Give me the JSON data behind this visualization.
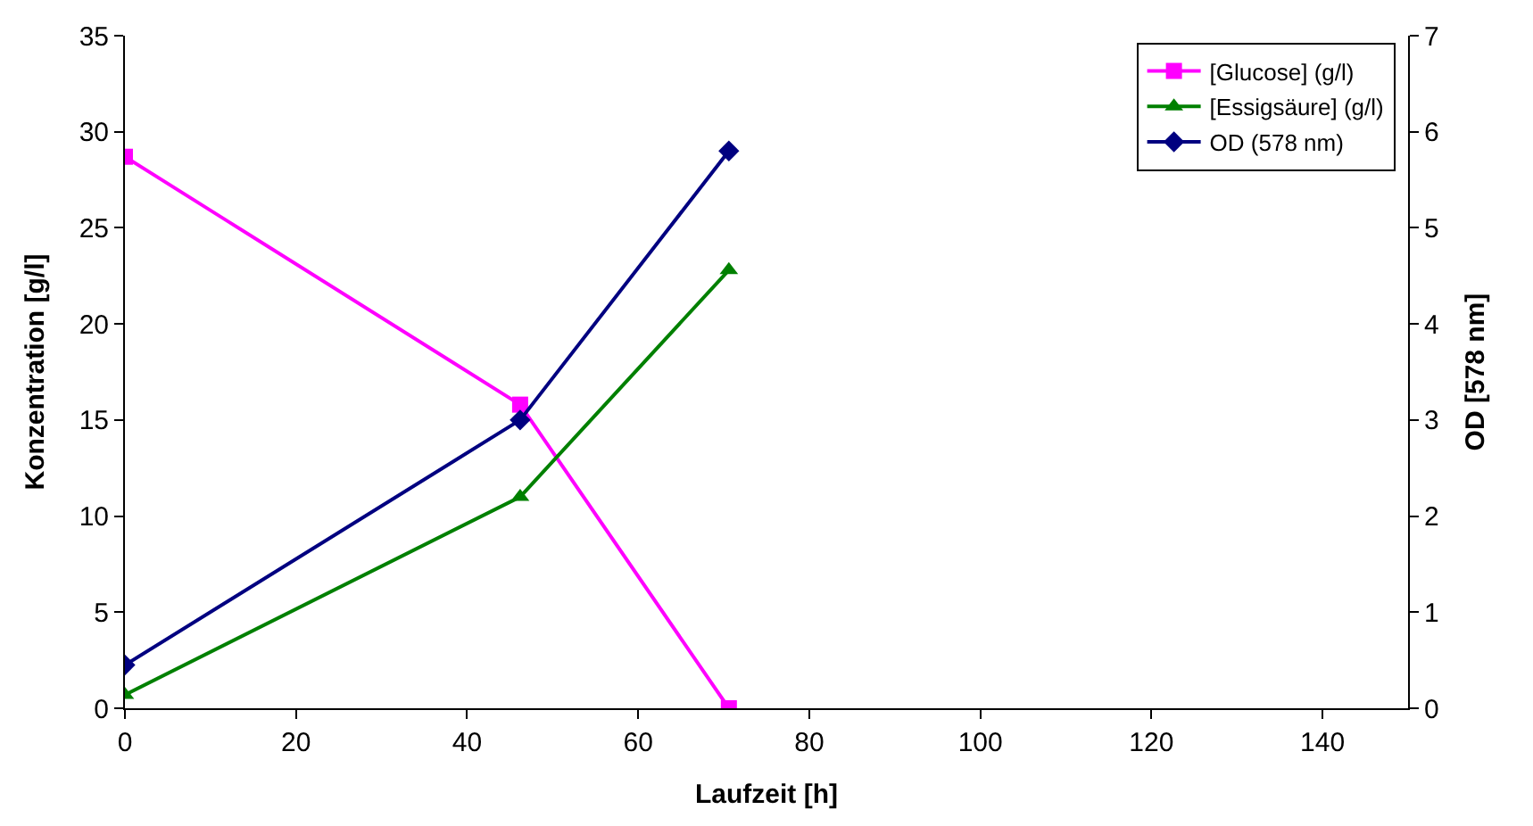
{
  "chart_data": {
    "type": "line",
    "xlabel": "Laufzeit [h]",
    "ylabel": "Konzentration [g/l]",
    "y2label": "OD [578 nm]",
    "x": [
      0,
      46.2,
      70.6
    ],
    "series": [
      {
        "name": "[Glucose] (g/l)",
        "color": "#ff00ff",
        "marker": "square",
        "values": [
          28.7,
          15.8,
          0
        ]
      },
      {
        "name": "[Essigsäure] (g/l)",
        "color": "#008000",
        "marker": "triangle",
        "values": [
          0.7,
          11,
          22.8
        ]
      },
      {
        "name": "OD (578 nm)",
        "color": "#000080",
        "marker": "diamond",
        "axis": "y2",
        "values": [
          0.45,
          3.0,
          5.8
        ]
      }
    ],
    "xlim": [
      0,
      150
    ],
    "xticks": [
      0,
      20,
      40,
      60,
      80,
      100,
      120,
      140
    ],
    "ylim": [
      0,
      35
    ],
    "yticks": [
      0,
      5,
      10,
      15,
      20,
      25,
      30,
      35
    ],
    "y2lim": [
      0,
      7
    ],
    "y2ticks": [
      0,
      1,
      2,
      3,
      4,
      5,
      6,
      7
    ],
    "legend": "top right",
    "line_style": "solid"
  }
}
